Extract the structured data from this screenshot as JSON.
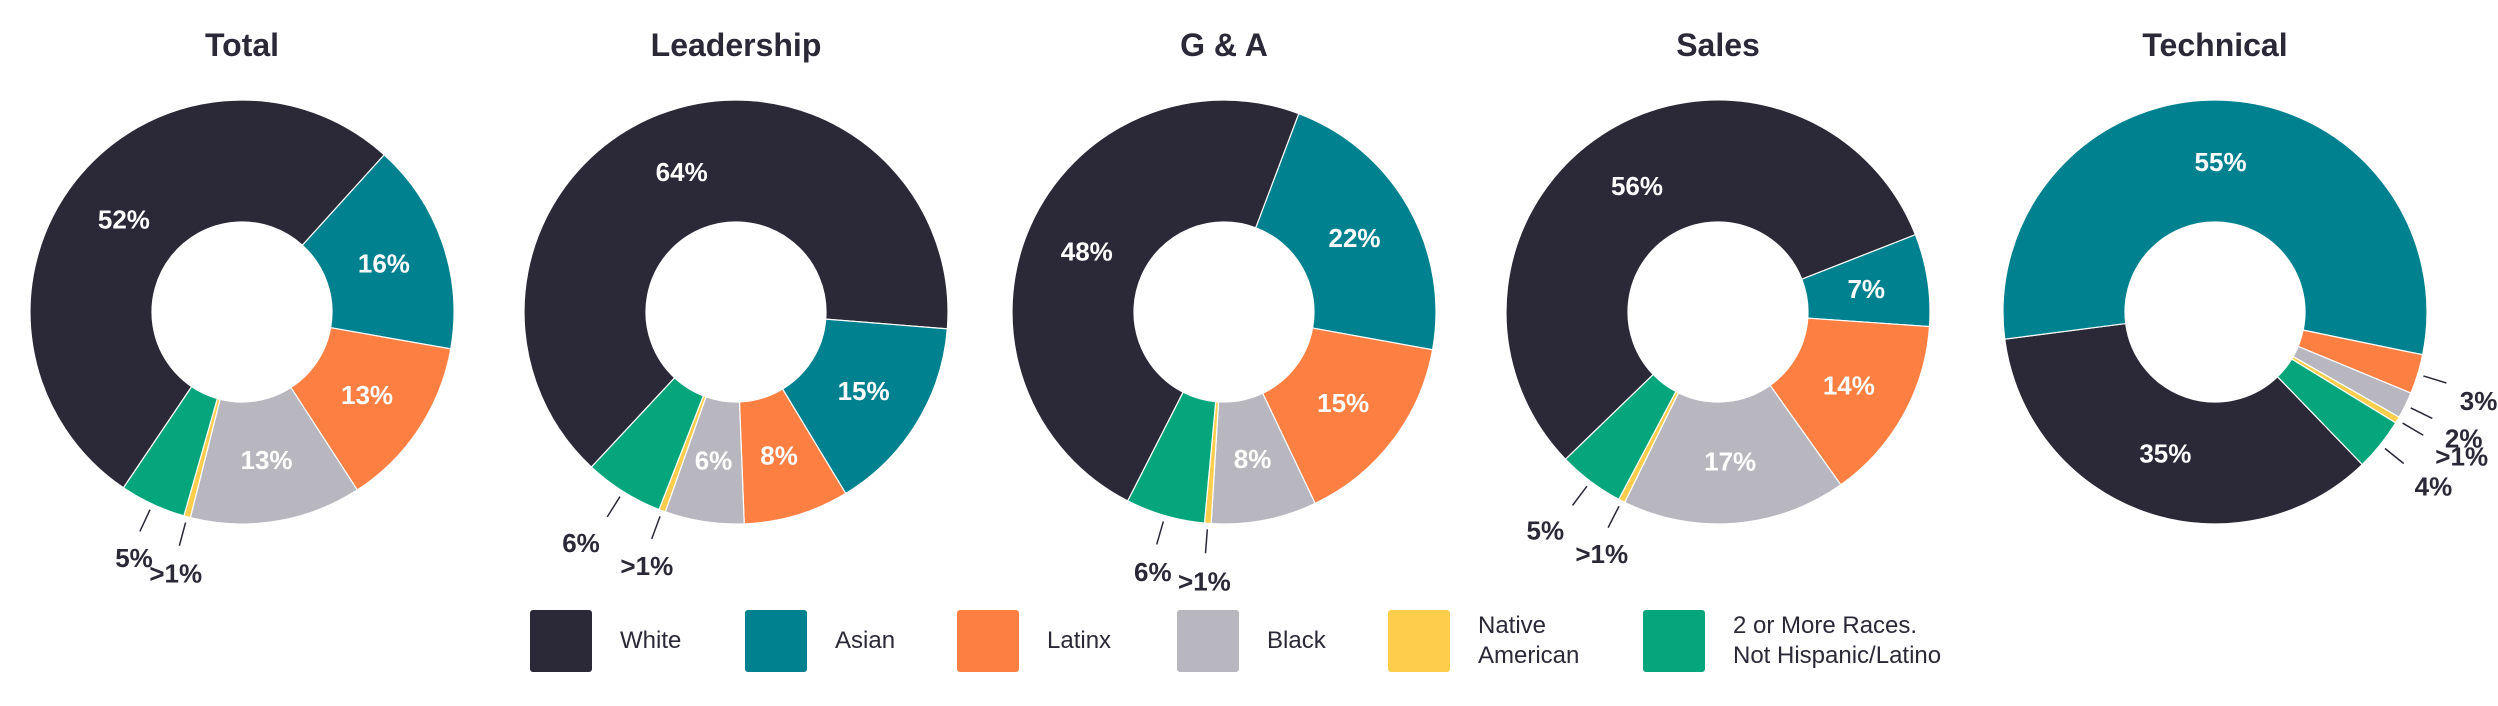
{
  "chart_data": [
    {
      "type": "pie",
      "title": "Total",
      "categories": [
        "White",
        "Asian",
        "Latinx",
        "Black",
        "Native American",
        "2 or More Races. Not Hispanic/Latino"
      ],
      "values": [
        52,
        16,
        13,
        13,
        0.5,
        5
      ],
      "labels": [
        "52%",
        "16%",
        "13%",
        "13%",
        ">1%",
        "5%"
      ]
    },
    {
      "type": "pie",
      "title": "Leadership",
      "categories": [
        "White",
        "Asian",
        "Latinx",
        "Black",
        "Native American",
        "2 or More Races. Not Hispanic/Latino"
      ],
      "values": [
        64,
        15,
        8,
        6,
        0.5,
        6
      ],
      "labels": [
        "64%",
        "15%",
        "8%",
        "6%",
        ">1%",
        "6%"
      ]
    },
    {
      "type": "pie",
      "title": "G & A",
      "categories": [
        "White",
        "Asian",
        "Latinx",
        "Black",
        "Native American",
        "2 or More Races. Not Hispanic/Latino"
      ],
      "values": [
        48,
        22,
        15,
        8,
        0.5,
        6
      ],
      "labels": [
        "48%",
        "22%",
        "15%",
        "8%",
        ">1%",
        "6%"
      ]
    },
    {
      "type": "pie",
      "title": "Sales",
      "categories": [
        "White",
        "Asian",
        "Latinx",
        "Black",
        "Native American",
        "2 or More Races. Not Hispanic/Latino"
      ],
      "values": [
        56,
        7,
        14,
        17,
        0.5,
        5
      ],
      "labels": [
        "56%",
        "7%",
        "14%",
        "17%",
        ">1%",
        "5%"
      ]
    },
    {
      "type": "pie",
      "title": "Technical",
      "categories": [
        "White",
        "Asian",
        "Latinx",
        "Black",
        "Native American",
        "2 or More Races. Not Hispanic/Latino"
      ],
      "values": [
        35,
        55,
        3,
        2,
        0.5,
        4
      ],
      "labels": [
        "35%",
        "55%",
        "3%",
        "2%",
        ">1%",
        "4%"
      ]
    }
  ],
  "legend": [
    {
      "label": "White",
      "color": "#2b2838"
    },
    {
      "label": "Asian",
      "color": "#00818f"
    },
    {
      "label": "Latinx",
      "color": "#fe7f42"
    },
    {
      "label": "Black",
      "color": "#b8b7c0"
    },
    {
      "label": "Native\nAmerican",
      "color": "#fecd4b"
    },
    {
      "label": "2 or More Races.\nNot Hispanic/Latino",
      "color": "#06a67c"
    }
  ],
  "colors": {
    "White": "#2b2838",
    "Asian": "#00818f",
    "Latinx": "#fe7f42",
    "Black": "#b8b7c0",
    "Native American": "#fecd4b",
    "2 or More Races. Not Hispanic/Latino": "#06a67c"
  },
  "label_text_color": "#ffffff",
  "external_label_color": "#2b2838"
}
